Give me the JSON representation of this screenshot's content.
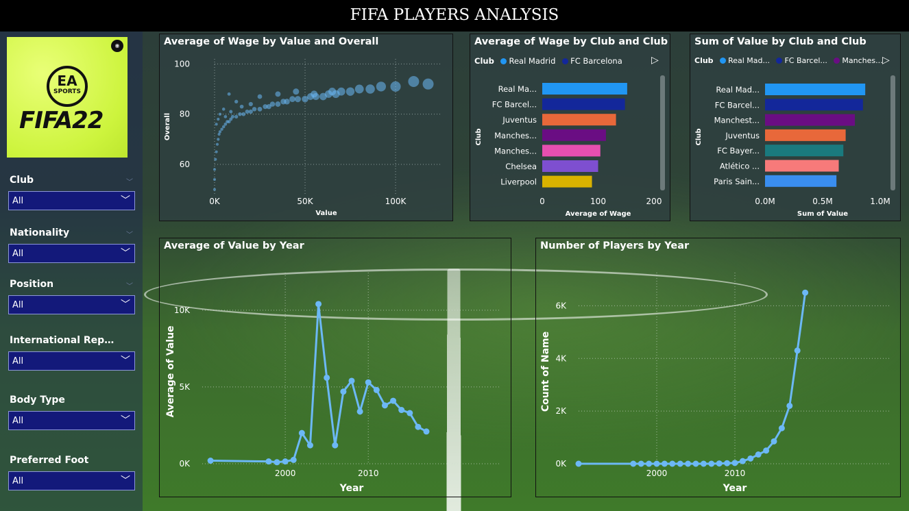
{
  "title": "FIFA PLAYERS ANALYSIS",
  "logo": {
    "brand": "EA",
    "sub": "SPORTS",
    "game": "FIFA22"
  },
  "slicers": [
    {
      "label": "Club",
      "value": "All"
    },
    {
      "label": "Nationality",
      "value": "All"
    },
    {
      "label": "Position",
      "value": "All"
    },
    {
      "label": "International Reputat...",
      "value": "All"
    },
    {
      "label": "Body Type",
      "value": "All"
    },
    {
      "label": "Preferred Foot",
      "value": "All"
    }
  ],
  "panels": {
    "scatter": {
      "title": "Average of Wage by Value and Overall"
    },
    "wage_club": {
      "title": "Average of Wage by Club and Club",
      "legend_title": "Club",
      "legend": [
        "Real Madrid",
        "FC Barcelona"
      ]
    },
    "value_club": {
      "title": "Sum of Value by Club and Club",
      "legend_title": "Club",
      "legend": [
        "Real Mad...",
        "FC Barcel...",
        "Manches..."
      ]
    },
    "value_year": {
      "title": "Average of Value by Year"
    },
    "players_year": {
      "title": "Number of Players by Year"
    }
  },
  "colors": {
    "accent": "#6cb8f5",
    "series_blue": "#2196f3",
    "series_navy": "#13279a",
    "series_purple": "#6a0d83"
  },
  "chart_data": [
    {
      "type": "scatter",
      "title": "Average of Wage by Value and Overall",
      "xlabel": "Value",
      "ylabel": "Overall",
      "xlim": [
        0,
        125000
      ],
      "ylim": [
        48,
        102
      ],
      "xticks": [
        "0K",
        "50K",
        "100K"
      ],
      "yticks": [
        "60",
        "80",
        "100"
      ],
      "points": [
        [
          0,
          50
        ],
        [
          0,
          54
        ],
        [
          0,
          58
        ],
        [
          500,
          62
        ],
        [
          1000,
          65
        ],
        [
          1500,
          68
        ],
        [
          2000,
          70
        ],
        [
          2500,
          72
        ],
        [
          3000,
          73
        ],
        [
          4000,
          74
        ],
        [
          5000,
          75
        ],
        [
          6000,
          76
        ],
        [
          7000,
          77
        ],
        [
          8000,
          77
        ],
        [
          9000,
          78
        ],
        [
          10000,
          79
        ],
        [
          12000,
          79
        ],
        [
          14000,
          80
        ],
        [
          16000,
          80
        ],
        [
          18000,
          81
        ],
        [
          20000,
          81
        ],
        [
          22000,
          82
        ],
        [
          25000,
          82
        ],
        [
          28000,
          83
        ],
        [
          30000,
          83
        ],
        [
          32000,
          84
        ],
        [
          35000,
          84
        ],
        [
          38000,
          85
        ],
        [
          40000,
          85
        ],
        [
          43000,
          86
        ],
        [
          46000,
          86
        ],
        [
          50000,
          86
        ],
        [
          53000,
          87
        ],
        [
          56000,
          87
        ],
        [
          60000,
          87
        ],
        [
          63000,
          88
        ],
        [
          67000,
          88
        ],
        [
          70000,
          89
        ],
        [
          75000,
          89
        ],
        [
          80000,
          90
        ],
        [
          86000,
          90
        ],
        [
          92000,
          91
        ],
        [
          100000,
          91
        ],
        [
          110000,
          93
        ],
        [
          118000,
          92
        ],
        [
          3000,
          80
        ],
        [
          5000,
          82
        ],
        [
          8000,
          88
        ],
        [
          12000,
          85
        ],
        [
          15000,
          83
        ],
        [
          25000,
          87
        ],
        [
          35000,
          88
        ],
        [
          45000,
          89
        ],
        [
          55000,
          88
        ],
        [
          65000,
          89
        ],
        [
          2000,
          78
        ],
        [
          1000,
          76
        ],
        [
          6000,
          79
        ],
        [
          9000,
          81
        ],
        [
          20000,
          84
        ]
      ]
    },
    {
      "type": "bar",
      "title": "Average of Wage by Club and Club",
      "xlabel": "Average of Wage",
      "ylabel": "Club",
      "xlim": [
        0,
        200
      ],
      "xticks": [
        "0",
        "100",
        "200"
      ],
      "categories": [
        "Real Ma...",
        "FC Barcel...",
        "Juventus",
        "Manches...",
        "Manches...",
        "Chelsea",
        "Liverpool"
      ],
      "values": [
        152,
        148,
        132,
        114,
        104,
        100,
        89
      ],
      "bar_colors": [
        "#2196f3",
        "#13279a",
        "#e8683a",
        "#6a0d83",
        "#e64fb0",
        "#7e4fd0",
        "#d9b200"
      ]
    },
    {
      "type": "bar",
      "title": "Sum of Value by Club and Club",
      "xlabel": "Sum of Value",
      "ylabel": "Club",
      "xlim": [
        0,
        1.0
      ],
      "xticks": [
        "0.0M",
        "0.5M",
        "1.0M"
      ],
      "categories": [
        "Real Mad...",
        "FC Barcel...",
        "Manchest...",
        "Juventus",
        "FC Bayer...",
        "Atlético ...",
        "Paris Sain..."
      ],
      "values": [
        0.87,
        0.85,
        0.78,
        0.7,
        0.68,
        0.64,
        0.62
      ],
      "bar_colors": [
        "#2196f3",
        "#13279a",
        "#6a0d83",
        "#e8683a",
        "#1a7a7e",
        "#f77a7a",
        "#3a8ef0"
      ]
    },
    {
      "type": "line",
      "title": "Average of Value by Year",
      "xlabel": "Year",
      "ylabel": "Average of Value",
      "xlim": [
        1990,
        2026
      ],
      "ylim": [
        0,
        12000
      ],
      "xticks": [
        "2000",
        "2010"
      ],
      "yticks": [
        "0K",
        "5K",
        "10K"
      ],
      "x": [
        1991,
        1998,
        1999,
        2000,
        2001,
        2002,
        2003,
        2004,
        2005,
        2006,
        2007,
        2008,
        2009,
        2010,
        2011,
        2012,
        2013,
        2014,
        2015,
        2016,
        2017
      ],
      "y": [
        200,
        150,
        100,
        150,
        250,
        2000,
        1200,
        10400,
        5600,
        1200,
        4700,
        5400,
        3400,
        5300,
        4800,
        3800,
        4100,
        3500,
        3300,
        2400,
        2100
      ]
    },
    {
      "type": "line",
      "title": "Number of Players by Year",
      "xlabel": "Year",
      "ylabel": "Count of Name",
      "xlim": [
        1990,
        2030
      ],
      "ylim": [
        0,
        7000
      ],
      "xticks": [
        "2000",
        "2010"
      ],
      "yticks": [
        "0K",
        "2K",
        "4K",
        "6K"
      ],
      "x": [
        1990,
        1997,
        1998,
        1999,
        2000,
        2001,
        2002,
        2003,
        2004,
        2005,
        2006,
        2007,
        2008,
        2009,
        2010,
        2011,
        2012,
        2013,
        2014,
        2015,
        2016,
        2017,
        2018,
        2019,
        2020,
        2021,
        2022
      ],
      "y": [
        0,
        0,
        0,
        0,
        0,
        0,
        0,
        0,
        0,
        0,
        0,
        0,
        10,
        20,
        30,
        100,
        200,
        350,
        500,
        850,
        1350,
        2200,
        4300,
        6500,
        0,
        0,
        0
      ]
    }
  ]
}
